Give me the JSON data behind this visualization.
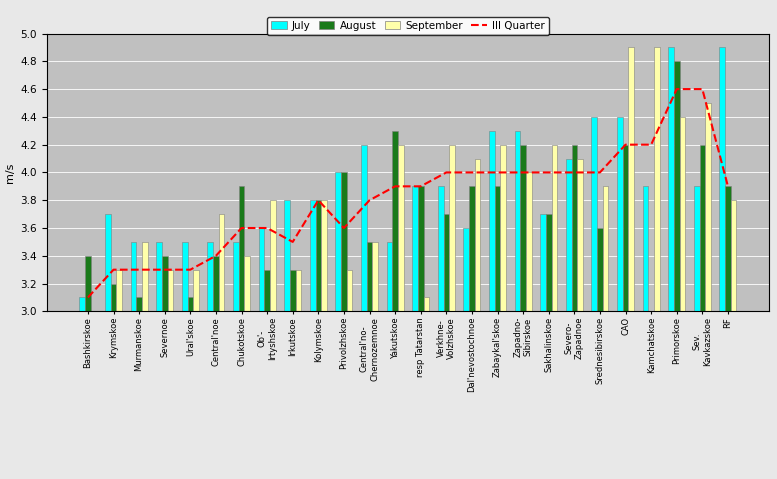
{
  "categories": [
    "Bashkirskoe",
    "Krymskoe",
    "Murmanskoe",
    "Severnoe",
    "Ural'skoe",
    "Central'noe",
    "Chukotskoe",
    "Ob'-\nIrtyshskoe",
    "Irkutskoe",
    "Kolymskoe",
    "Privolzhskoe",
    "Central'no-\nChernozemnoe",
    "Yakutskoe",
    "resp Tatarstan",
    "Verkhnе-\nVolzhskoe",
    "Dal'nevostochnoe",
    "Zabaykal'skoe",
    "Zapadno-\nSibirskoe",
    "Sakhalinskoe",
    "Severo-\nZapadnoe",
    "Srednesibirskoe",
    "CAO",
    "Kamchatskoe",
    "Primorskoe",
    "Sev.\nKavkazskoe",
    "RF"
  ],
  "july": [
    3.1,
    3.7,
    3.5,
    3.5,
    3.5,
    3.5,
    3.5,
    3.6,
    3.8,
    3.8,
    4.0,
    4.2,
    3.5,
    3.9,
    3.9,
    3.6,
    4.3,
    4.3,
    3.7,
    4.1,
    4.4,
    4.4,
    3.9,
    4.9,
    3.9,
    4.9
  ],
  "august": [
    3.4,
    3.2,
    3.1,
    3.4,
    3.1,
    3.4,
    3.9,
    3.3,
    3.3,
    3.8,
    4.0,
    3.5,
    4.3,
    3.9,
    3.7,
    3.9,
    3.9,
    4.2,
    3.7,
    4.2,
    3.6,
    4.2,
    3.0,
    4.8,
    4.2,
    3.9
  ],
  "september": [
    3.0,
    3.3,
    3.5,
    3.3,
    3.3,
    3.7,
    3.4,
    3.8,
    3.3,
    3.8,
    3.3,
    3.5,
    4.2,
    3.1,
    4.2,
    4.1,
    4.2,
    4.0,
    4.2,
    4.1,
    3.9,
    4.9,
    4.9,
    4.4,
    4.5,
    3.8
  ],
  "quarter": [
    3.1,
    3.3,
    3.3,
    3.3,
    3.3,
    3.4,
    3.6,
    3.6,
    3.5,
    3.8,
    3.6,
    3.8,
    3.9,
    3.9,
    4.0,
    4.0,
    4.0,
    4.0,
    4.0,
    4.0,
    4.0,
    4.2,
    4.2,
    4.6,
    4.6,
    3.9
  ],
  "july_color": "#00FFFF",
  "august_color": "#1A7A1A",
  "september_color": "#FFFFAA",
  "quarter_color": "#FF0000",
  "background_color": "#C0C0C0",
  "fig_bg_color": "#E8E8E8",
  "ylabel": "m/s",
  "ylim": [
    3.0,
    5.0
  ],
  "ybase": 3.0,
  "yticks": [
    3.0,
    3.2,
    3.4,
    3.6,
    3.8,
    4.0,
    4.2,
    4.4,
    4.6,
    4.8,
    5.0
  ],
  "legend_labels": [
    "July",
    "August",
    "September",
    "III Quarter"
  ],
  "bar_width": 0.22,
  "tick_fontsize": 6.0,
  "ylabel_fontsize": 8
}
